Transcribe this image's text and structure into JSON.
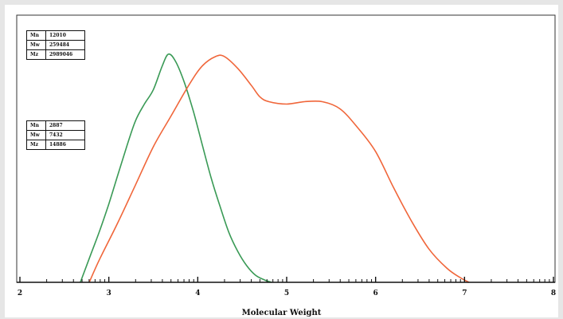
{
  "chart_data": {
    "type": "line",
    "xlabel": "Molecular Weight",
    "ylabel": "",
    "xlim": [
      2,
      8
    ],
    "ylim": [
      0,
      1
    ],
    "xticks": [
      "2",
      "3",
      "4",
      "5",
      "6",
      "7",
      "8"
    ],
    "grid": false,
    "colors": {
      "green": "#3a9a56",
      "orange": "#f0663a"
    },
    "series": [
      {
        "color": "#3a9a56",
        "x": [
          2.68,
          2.8,
          2.9,
          3.0,
          3.1,
          3.2,
          3.3,
          3.4,
          3.5,
          3.6,
          3.67,
          3.75,
          3.85,
          3.95,
          4.05,
          4.15,
          4.25,
          4.35,
          4.45,
          4.55,
          4.65,
          4.75,
          4.83
        ],
        "y": [
          0.0,
          0.12,
          0.22,
          0.33,
          0.45,
          0.57,
          0.68,
          0.75,
          0.81,
          0.91,
          0.96,
          0.93,
          0.84,
          0.72,
          0.58,
          0.44,
          0.32,
          0.21,
          0.13,
          0.07,
          0.03,
          0.01,
          0.0
        ]
      },
      {
        "color": "#f0663a",
        "x": [
          2.78,
          2.9,
          3.1,
          3.3,
          3.5,
          3.7,
          3.9,
          4.05,
          4.2,
          4.3,
          4.45,
          4.6,
          4.7,
          4.8,
          5.0,
          5.2,
          5.4,
          5.6,
          5.8,
          6.0,
          6.2,
          6.4,
          6.6,
          6.8,
          6.95,
          7.05
        ],
        "y": [
          0.0,
          0.1,
          0.25,
          0.41,
          0.57,
          0.7,
          0.83,
          0.91,
          0.95,
          0.95,
          0.9,
          0.83,
          0.78,
          0.76,
          0.75,
          0.76,
          0.76,
          0.73,
          0.65,
          0.55,
          0.4,
          0.26,
          0.14,
          0.06,
          0.02,
          0.0
        ]
      }
    ],
    "tables": [
      {
        "rows": [
          {
            "key": "Mn",
            "value": "12010"
          },
          {
            "key": "Mw",
            "value": "259484"
          },
          {
            "key": "Mz",
            "value": "2989046"
          }
        ]
      },
      {
        "rows": [
          {
            "key": "Mn",
            "value": "2887"
          },
          {
            "key": "Mw",
            "value": "7432"
          },
          {
            "key": "Mz",
            "value": "14886"
          }
        ]
      }
    ]
  }
}
